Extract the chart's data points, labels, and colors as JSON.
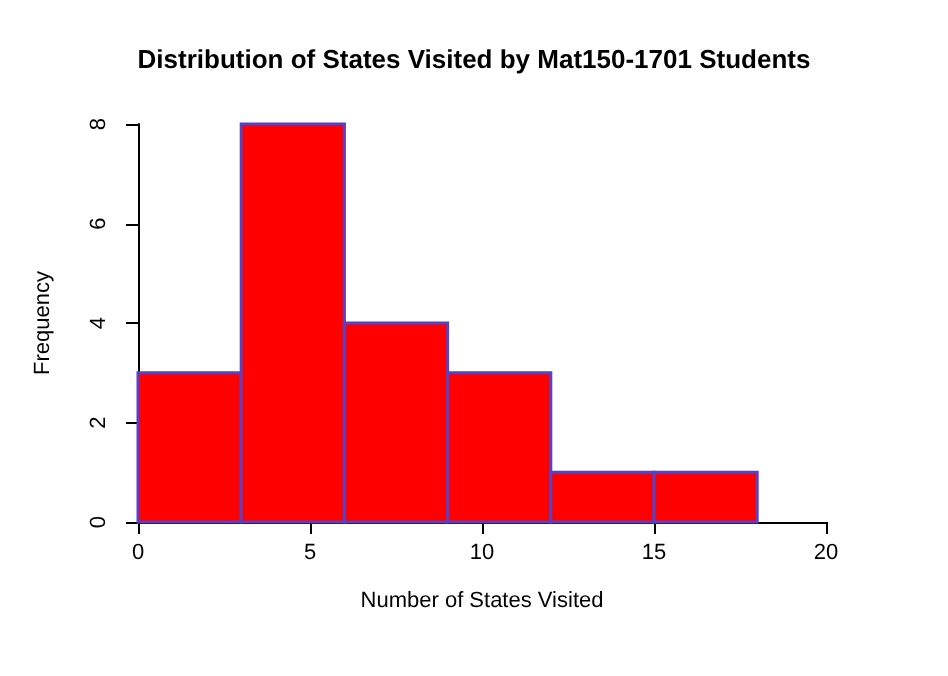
{
  "chart_data": {
    "type": "histogram",
    "title": "Distribution of States Visited by Mat150-1701 Students",
    "xlabel": "Number of States Visited",
    "ylabel": "Frequency",
    "bins": [
      0,
      3,
      6,
      9,
      12,
      15,
      18
    ],
    "values": [
      3,
      8,
      4,
      3,
      1,
      1
    ],
    "color": "#ff0000",
    "xlim": [
      0,
      20
    ],
    "xticks": [
      0,
      5,
      10,
      15,
      20
    ],
    "ylim": [
      0,
      8
    ],
    "yticks": [
      0,
      2,
      4,
      6,
      8
    ],
    "grid": false
  }
}
